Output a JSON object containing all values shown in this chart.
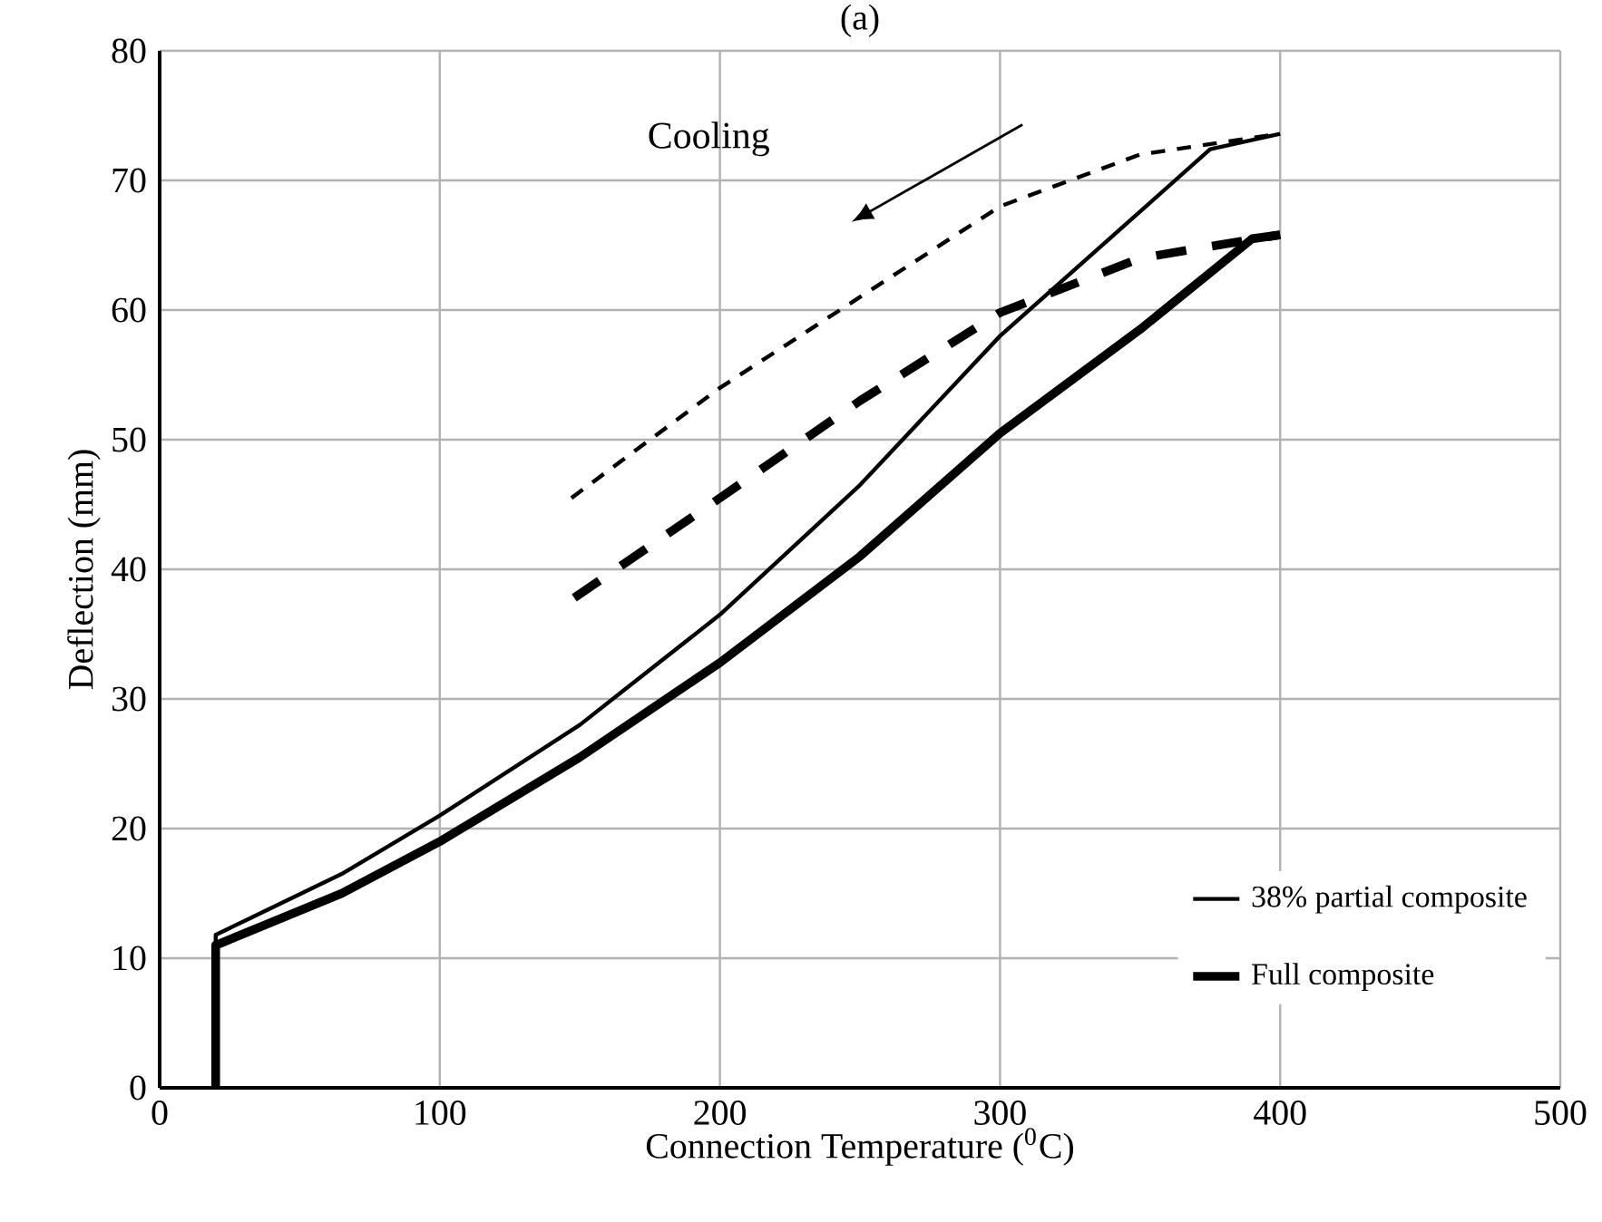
{
  "chart_data": {
    "type": "line",
    "title": "(a)",
    "xlabel": "Connection Temperature ($^{0}$C)",
    "ylabel": "Deflection (mm)",
    "xlim": [
      0,
      500
    ],
    "ylim": [
      0,
      80
    ],
    "xticks": [
      0,
      100,
      200,
      300,
      400,
      500
    ],
    "yticks": [
      0,
      10,
      20,
      30,
      40,
      50,
      60,
      70,
      80
    ],
    "grid": true,
    "legend": "bottom right",
    "marker": "none",
    "annotations": [
      "Cooling"
    ],
    "series": [
      {
        "name": "38% partial composite",
        "color": "#000000",
        "line_style": "solid",
        "x": [
          20,
          20,
          65,
          100,
          150,
          200,
          250,
          300,
          375,
          400
        ],
        "values": [
          0,
          11.8,
          16.5,
          21,
          28,
          36.5,
          46.5,
          58,
          72.4,
          73.6
        ]
      },
      {
        "name": "Full composite",
        "color": "#000000",
        "line_style": "solid",
        "x": [
          20,
          20,
          65,
          100,
          150,
          200,
          250,
          300,
          350,
          370,
          390,
          400
        ],
        "values": [
          0,
          11,
          15,
          19,
          25.5,
          32.8,
          41,
          50.5,
          58.5,
          62,
          65.5,
          65.8
        ]
      },
      {
        "color": "#000000",
        "line_style": "dashed",
        "x": [
          147,
          200,
          250,
          300,
          350,
          400
        ],
        "values": [
          45.5,
          54,
          61,
          68,
          72,
          73.6
        ]
      },
      {
        "color": "#000000",
        "line_style": "dashed",
        "x": [
          148,
          200,
          250,
          300,
          350,
          400
        ],
        "values": [
          37.8,
          45.5,
          53,
          59.8,
          64,
          65.8
        ]
      }
    ]
  }
}
